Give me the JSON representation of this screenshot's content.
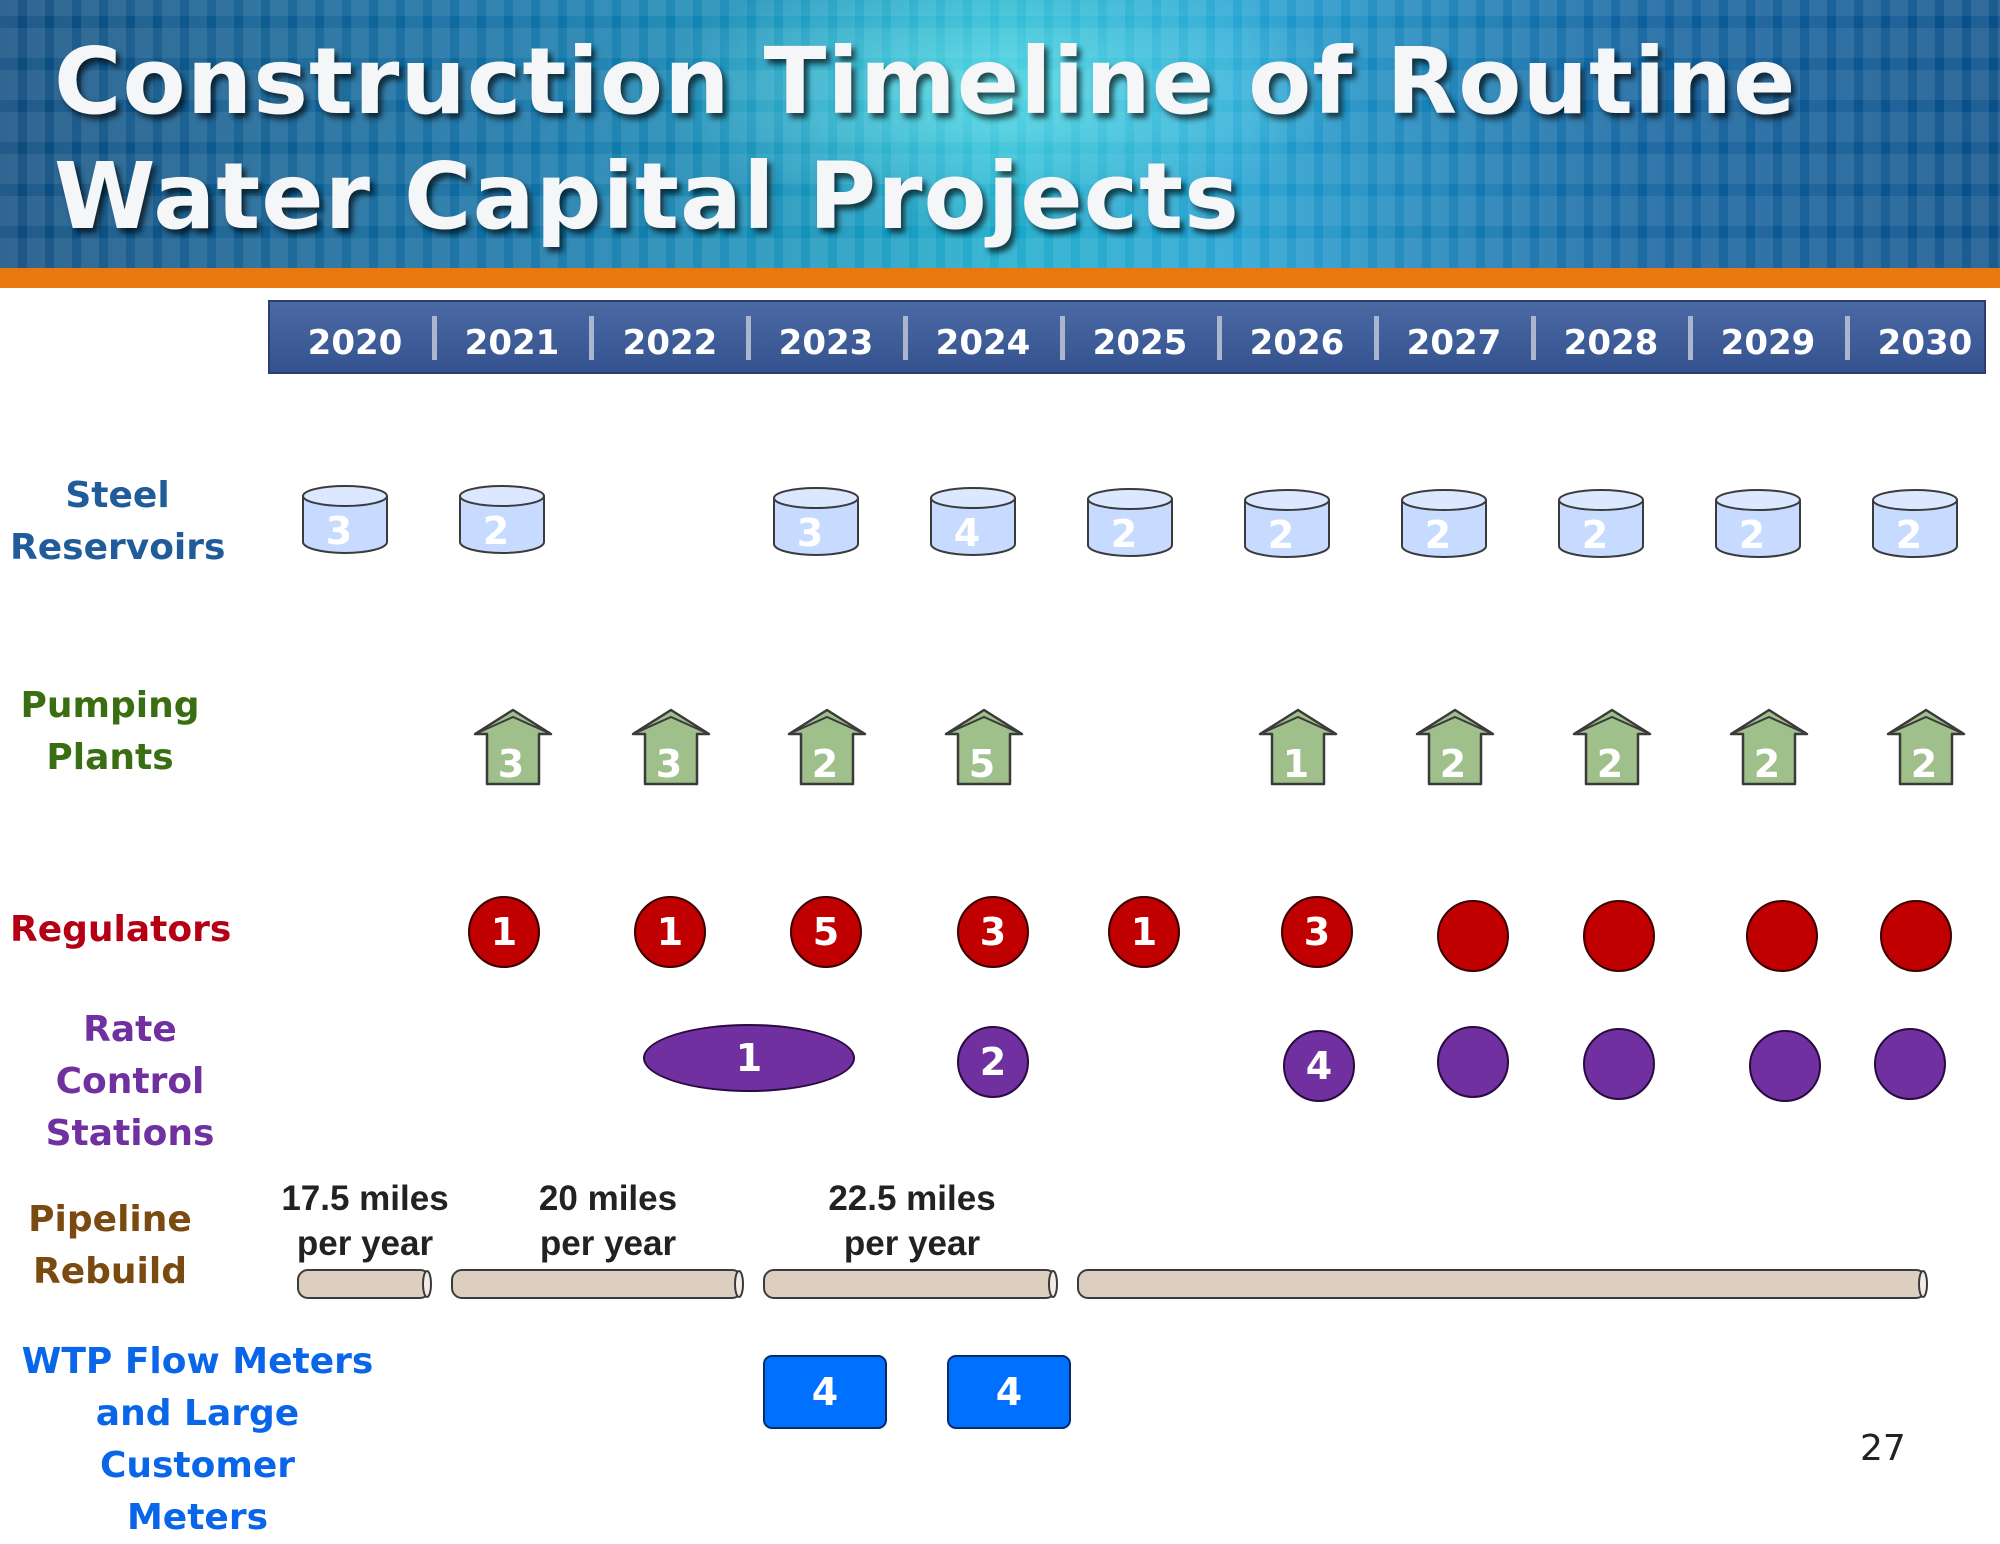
{
  "slide": {
    "title_line1": "Construction Timeline of Routine",
    "title_line2": "Water Capital Projects",
    "page_number": "27"
  },
  "years": [
    "2020",
    "2021",
    "2022",
    "2023",
    "2024",
    "2025",
    "2026",
    "2027",
    "2028",
    "2029",
    "2030"
  ],
  "rows": {
    "steel_reservoirs": {
      "label_line1": "Steel",
      "label_line2": "Reservoirs",
      "color": "#1f5c99",
      "items": [
        {
          "year": "2020",
          "count": "3"
        },
        {
          "year": "2021",
          "count": "2"
        },
        {
          "year": "2023",
          "count": "3"
        },
        {
          "year": "2024",
          "count": "4"
        },
        {
          "year": "2025",
          "count": "2"
        },
        {
          "year": "2026",
          "count": "2"
        },
        {
          "year": "2027",
          "count": "2"
        },
        {
          "year": "2028",
          "count": "2"
        },
        {
          "year": "2029",
          "count": "2"
        },
        {
          "year": "2030",
          "count": "2"
        }
      ]
    },
    "pumping_plants": {
      "label_line1": "Pumping",
      "label_line2": "Plants",
      "color": "#3a6e12",
      "items": [
        {
          "year": "2021",
          "count": "3"
        },
        {
          "year": "2022",
          "count": "3"
        },
        {
          "year": "2023",
          "count": "2"
        },
        {
          "year": "2024",
          "count": "5"
        },
        {
          "year": "2026",
          "count": "1"
        },
        {
          "year": "2027",
          "count": "2"
        },
        {
          "year": "2028",
          "count": "2"
        },
        {
          "year": "2029",
          "count": "2"
        },
        {
          "year": "2030",
          "count": "2"
        }
      ]
    },
    "regulators": {
      "label": "Regulators",
      "color": "#b40012",
      "items": [
        {
          "year": "2021",
          "count": "1"
        },
        {
          "year": "2022",
          "count": "1"
        },
        {
          "year": "2023",
          "count": "5"
        },
        {
          "year": "2024",
          "count": "3"
        },
        {
          "year": "2025",
          "count": "1"
        },
        {
          "year": "2026",
          "count": "3"
        },
        {
          "year": "2027",
          "count": ""
        },
        {
          "year": "2028",
          "count": ""
        },
        {
          "year": "2029",
          "count": ""
        },
        {
          "year": "2030",
          "count": ""
        }
      ]
    },
    "rate_control_stations": {
      "label_line1": "Rate Control",
      "label_line2": "Stations",
      "color": "#7030a0",
      "items": [
        {
          "year": "2022-2023",
          "count": "1"
        },
        {
          "year": "2024",
          "count": "2"
        },
        {
          "year": "2026",
          "count": "4"
        },
        {
          "year": "2027",
          "count": ""
        },
        {
          "year": "2028",
          "count": ""
        },
        {
          "year": "2029",
          "count": ""
        },
        {
          "year": "2030",
          "count": ""
        }
      ]
    },
    "pipeline_rebuild": {
      "label_line1": "Pipeline",
      "label_line2": "Rebuild",
      "color": "#7a4a10",
      "rates": [
        {
          "line1": "17.5 miles",
          "line2": "per year"
        },
        {
          "line1": "20 miles",
          "line2": "per year"
        },
        {
          "line1": "22.5 miles",
          "line2": "per year"
        }
      ]
    },
    "flow_meters": {
      "label_line1": "WTP Flow Meters",
      "label_line2": "and Large Customer",
      "label_line3": "Meters",
      "color": "#0a66e8",
      "items": [
        {
          "year": "2023",
          "count": "4"
        },
        {
          "year": "2024",
          "count": "4"
        }
      ]
    }
  },
  "colors": {
    "reservoir_fill": "#c6dbff",
    "pump_fill": "#9fbf8b",
    "regulator_fill": "#c00000",
    "rcs_fill": "#7030a0",
    "pipe_fill": "#ddcfc0",
    "meter_fill": "#0070ff",
    "accent_orange": "#e8780f"
  }
}
